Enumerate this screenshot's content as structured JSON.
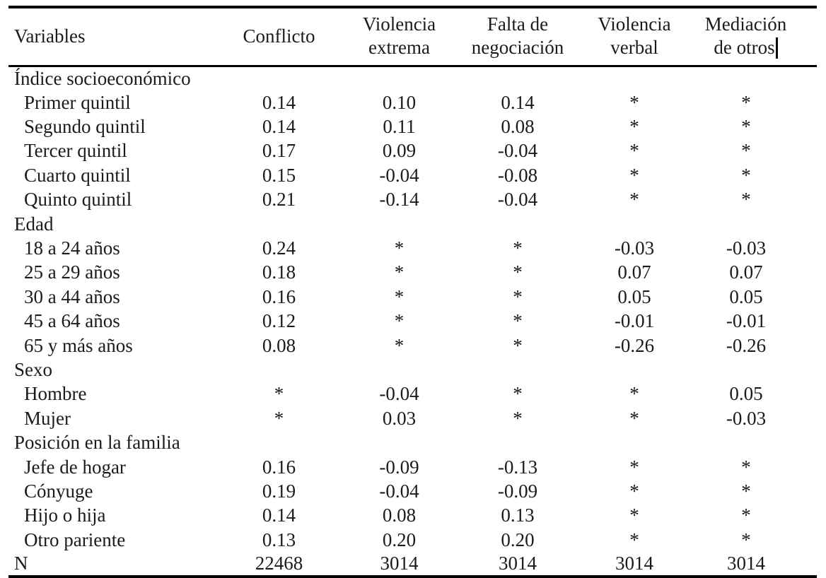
{
  "colors": {
    "background": "#ffffff",
    "text": "#1b1b1b",
    "rule": "#000000"
  },
  "table": {
    "columns": [
      "Variables",
      "Conflicto",
      "Violencia\nextrema",
      "Falta de\nnegociación",
      "Violencia\nverbal",
      "Mediación\nde otros"
    ],
    "rows": [
      {
        "label": "Índice socioeconómico",
        "type": "section",
        "values": [
          "",
          "",
          "",
          "",
          ""
        ]
      },
      {
        "label": "Primer quintil",
        "type": "data",
        "values": [
          "0.14",
          "0.10",
          "0.14",
          "*",
          "*"
        ]
      },
      {
        "label": "Segundo quintil",
        "type": "data",
        "values": [
          "0.14",
          "0.11",
          "0.08",
          "*",
          "*"
        ]
      },
      {
        "label": "Tercer quintil",
        "type": "data",
        "values": [
          "0.17",
          "0.09",
          "-0.04",
          "*",
          "*"
        ]
      },
      {
        "label": "Cuarto quintil",
        "type": "data",
        "values": [
          "0.15",
          "-0.04",
          "-0.08",
          "*",
          "*"
        ]
      },
      {
        "label": "Quinto quintil",
        "type": "data",
        "values": [
          "0.21",
          "-0.14",
          "-0.04",
          "*",
          "*"
        ]
      },
      {
        "label": "Edad",
        "type": "section",
        "values": [
          "",
          "",
          "",
          "",
          ""
        ]
      },
      {
        "label": "18 a 24 años",
        "type": "data",
        "values": [
          "0.24",
          "*",
          "*",
          "-0.03",
          "-0.03"
        ]
      },
      {
        "label": "25 a 29 años",
        "type": "data",
        "values": [
          "0.18",
          "*",
          "*",
          "0.07",
          "0.07"
        ]
      },
      {
        "label": "30 a 44 años",
        "type": "data",
        "values": [
          "0.16",
          "*",
          "*",
          "0.05",
          "0.05"
        ]
      },
      {
        "label": "45 a 64 años",
        "type": "data",
        "values": [
          "0.12",
          "*",
          "*",
          "-0.01",
          "-0.01"
        ]
      },
      {
        "label": "65 y más años",
        "type": "data",
        "values": [
          "0.08",
          "*",
          "*",
          "-0.26",
          "-0.26"
        ]
      },
      {
        "label": "Sexo",
        "type": "section",
        "values": [
          "",
          "",
          "",
          "",
          ""
        ]
      },
      {
        "label": "Hombre",
        "type": "data",
        "values": [
          "*",
          "-0.04",
          "*",
          "*",
          "0.05"
        ]
      },
      {
        "label": "Mujer",
        "type": "data",
        "values": [
          "*",
          "0.03",
          "*",
          "*",
          "-0.03"
        ]
      },
      {
        "label": "Posición en la familia",
        "type": "section",
        "values": [
          "",
          "",
          "",
          "",
          ""
        ]
      },
      {
        "label": "Jefe de hogar",
        "type": "data",
        "values": [
          "0.16",
          "-0.09",
          "-0.13",
          "*",
          "*"
        ]
      },
      {
        "label": "Cónyuge",
        "type": "data",
        "values": [
          "0.19",
          "-0.04",
          "-0.09",
          "*",
          "*"
        ]
      },
      {
        "label": "Hijo o hija",
        "type": "data",
        "values": [
          "0.14",
          "0.08",
          "0.13",
          "*",
          "*"
        ]
      },
      {
        "label": "Otro pariente",
        "type": "data",
        "values": [
          "0.13",
          "0.20",
          "0.20",
          "*",
          "*"
        ]
      },
      {
        "label": "N",
        "type": "total",
        "values": [
          "22468",
          "3014",
          "3014",
          "3014",
          "3014"
        ]
      }
    ]
  }
}
